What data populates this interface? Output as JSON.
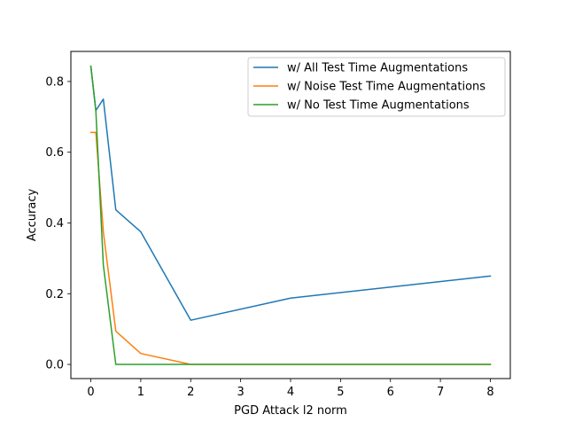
{
  "chart_data": {
    "type": "line",
    "title": "",
    "xlabel": "PGD Attack l2 norm",
    "ylabel": "Accuracy",
    "xlim": [
      -0.4,
      8.4
    ],
    "ylim": [
      -0.04,
      0.885
    ],
    "xticks": [
      0,
      1,
      2,
      3,
      4,
      5,
      6,
      7,
      8
    ],
    "yticks": [
      0.0,
      0.2,
      0.4,
      0.6,
      0.8
    ],
    "xtick_labels": [
      "0",
      "1",
      "2",
      "3",
      "4",
      "5",
      "6",
      "7",
      "8"
    ],
    "ytick_labels": [
      "0.0",
      "0.2",
      "0.4",
      "0.6",
      "0.8"
    ],
    "grid": false,
    "legend_position": "upper-right",
    "series": [
      {
        "name": "w/ All Test Time Augmentations",
        "color": "#1f77b4",
        "x": [
          0,
          0.1,
          0.25,
          0.5,
          1,
          2,
          4,
          8
        ],
        "y": [
          0.843,
          0.718,
          0.75,
          0.437,
          0.375,
          0.125,
          0.1875,
          0.25
        ]
      },
      {
        "name": "w/ Noise Test Time Augmentations",
        "color": "#ff7f0e",
        "x": [
          0,
          0.1,
          0.25,
          0.5,
          1,
          2,
          4,
          8
        ],
        "y": [
          0.656,
          0.656,
          0.375,
          0.094,
          0.031,
          0.0,
          0.0,
          0.0
        ]
      },
      {
        "name": "w/ No Test Time Augmentations",
        "color": "#2ca02c",
        "x": [
          0,
          0.1,
          0.25,
          0.5,
          1,
          2,
          4,
          8
        ],
        "y": [
          0.843,
          0.718,
          0.281,
          0.0,
          0.0,
          0.0,
          0.0,
          0.0
        ]
      }
    ]
  }
}
